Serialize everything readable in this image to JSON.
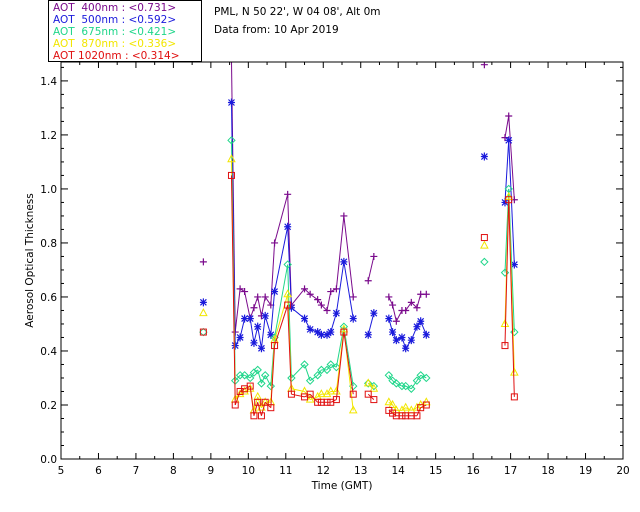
{
  "header": {
    "site": "PML, N 50 22', W 04 08', Alt 0m",
    "date": "Data from: 10 Apr 2019"
  },
  "legend": [
    {
      "name": "AOT  400nm : <0.731>",
      "color": "#7a0a8c"
    },
    {
      "name": "AOT  500nm : <0.592>",
      "color": "#1a1adc"
    },
    {
      "name": "AOT  675nm : <0.421>",
      "color": "#1fd68a"
    },
    {
      "name": "AOT  870nm : <0.336>",
      "color": "#f2e600"
    },
    {
      "name": "AOT 1020nm : <0.314>",
      "color": "#e01010"
    }
  ],
  "chart_data": {
    "type": "line",
    "xlabel": "Time (GMT)",
    "ylabel": "Aerosol Optical Thickness",
    "xlim": [
      5,
      20
    ],
    "ylim": [
      0,
      1.47
    ],
    "xticks": [
      5,
      6,
      7,
      8,
      9,
      10,
      11,
      12,
      13,
      14,
      15,
      16,
      17,
      18,
      19,
      20
    ],
    "yticks": [
      "0.0",
      "0.2",
      "0.4",
      "0.6",
      "0.8",
      "1.0",
      "1.2",
      "1.4"
    ],
    "series": [
      {
        "name": "AOT  400nm",
        "color": "#7a0a8c",
        "marker": "plus",
        "points": [
          [
            8.8,
            0.73
          ],
          [
            9.55,
            1.48
          ],
          [
            9.65,
            0.47
          ],
          [
            9.78,
            0.63
          ],
          [
            9.9,
            0.62
          ],
          [
            10.05,
            0.52
          ],
          [
            10.15,
            0.56
          ],
          [
            10.25,
            0.6
          ],
          [
            10.35,
            0.53
          ],
          [
            10.45,
            0.6
          ],
          [
            10.6,
            0.57
          ],
          [
            10.7,
            0.8
          ],
          [
            11.05,
            0.98
          ],
          [
            11.15,
            0.57
          ],
          [
            11.5,
            0.63
          ],
          [
            11.65,
            0.61
          ],
          [
            11.85,
            0.59
          ],
          [
            11.95,
            0.57
          ],
          [
            12.1,
            0.55
          ],
          [
            12.2,
            0.62
          ],
          [
            12.35,
            0.63
          ],
          [
            12.55,
            0.9
          ],
          [
            12.8,
            0.6
          ],
          [
            13.2,
            0.66
          ],
          [
            13.35,
            0.75
          ],
          [
            13.75,
            0.6
          ],
          [
            13.85,
            0.57
          ],
          [
            13.95,
            0.51
          ],
          [
            14.1,
            0.55
          ],
          [
            14.2,
            0.55
          ],
          [
            14.35,
            0.58
          ],
          [
            14.5,
            0.56
          ],
          [
            14.6,
            0.61
          ],
          [
            14.75,
            0.61
          ],
          [
            16.3,
            1.46
          ],
          [
            16.85,
            1.19
          ],
          [
            16.95,
            1.27
          ],
          [
            17.1,
            0.96
          ]
        ],
        "breaks": [
          1,
          13,
          23,
          25,
          34,
          35
        ]
      },
      {
        "name": "AOT  500nm",
        "color": "#1a1adc",
        "marker": "star",
        "points": [
          [
            8.8,
            0.58
          ],
          [
            9.55,
            1.32
          ],
          [
            9.65,
            0.42
          ],
          [
            9.78,
            0.45
          ],
          [
            9.9,
            0.52
          ],
          [
            10.05,
            0.52
          ],
          [
            10.15,
            0.43
          ],
          [
            10.25,
            0.49
          ],
          [
            10.35,
            0.41
          ],
          [
            10.45,
            0.53
          ],
          [
            10.6,
            0.46
          ],
          [
            10.7,
            0.62
          ],
          [
            11.05,
            0.86
          ],
          [
            11.15,
            0.56
          ],
          [
            11.5,
            0.52
          ],
          [
            11.65,
            0.48
          ],
          [
            11.85,
            0.47
          ],
          [
            11.95,
            0.46
          ],
          [
            12.1,
            0.46
          ],
          [
            12.2,
            0.47
          ],
          [
            12.35,
            0.54
          ],
          [
            12.55,
            0.73
          ],
          [
            12.8,
            0.52
          ],
          [
            13.2,
            0.46
          ],
          [
            13.35,
            0.54
          ],
          [
            13.75,
            0.52
          ],
          [
            13.85,
            0.47
          ],
          [
            13.95,
            0.44
          ],
          [
            14.1,
            0.45
          ],
          [
            14.2,
            0.41
          ],
          [
            14.35,
            0.44
          ],
          [
            14.5,
            0.49
          ],
          [
            14.6,
            0.51
          ],
          [
            14.75,
            0.46
          ],
          [
            16.3,
            1.12
          ],
          [
            16.85,
            0.95
          ],
          [
            16.95,
            1.18
          ],
          [
            17.1,
            0.72
          ]
        ],
        "breaks": [
          1,
          13,
          23,
          25,
          34,
          35
        ]
      },
      {
        "name": "AOT  675nm",
        "color": "#1fd68a",
        "marker": "diamond",
        "points": [
          [
            8.8,
            0.47
          ],
          [
            9.55,
            1.18
          ],
          [
            9.65,
            0.29
          ],
          [
            9.78,
            0.31
          ],
          [
            9.9,
            0.31
          ],
          [
            10.05,
            0.3
          ],
          [
            10.15,
            0.32
          ],
          [
            10.25,
            0.33
          ],
          [
            10.35,
            0.28
          ],
          [
            10.45,
            0.31
          ],
          [
            10.6,
            0.27
          ],
          [
            10.7,
            0.45
          ],
          [
            11.05,
            0.72
          ],
          [
            11.15,
            0.3
          ],
          [
            11.5,
            0.35
          ],
          [
            11.65,
            0.29
          ],
          [
            11.85,
            0.31
          ],
          [
            11.95,
            0.33
          ],
          [
            12.1,
            0.33
          ],
          [
            12.2,
            0.35
          ],
          [
            12.35,
            0.34
          ],
          [
            12.55,
            0.49
          ],
          [
            12.8,
            0.27
          ],
          [
            13.2,
            0.28
          ],
          [
            13.35,
            0.27
          ],
          [
            13.75,
            0.31
          ],
          [
            13.85,
            0.29
          ],
          [
            13.95,
            0.28
          ],
          [
            14.1,
            0.27
          ],
          [
            14.2,
            0.27
          ],
          [
            14.35,
            0.26
          ],
          [
            14.5,
            0.29
          ],
          [
            14.6,
            0.31
          ],
          [
            14.75,
            0.3
          ],
          [
            16.3,
            0.73
          ],
          [
            16.85,
            0.69
          ],
          [
            16.95,
            1.0
          ],
          [
            17.1,
            0.47
          ]
        ],
        "breaks": [
          1,
          13,
          23,
          25,
          34,
          35
        ]
      },
      {
        "name": "AOT  870nm",
        "color": "#f2e600",
        "marker": "triangle",
        "points": [
          [
            8.8,
            0.54
          ],
          [
            9.55,
            1.11
          ],
          [
            9.65,
            0.22
          ],
          [
            9.78,
            0.24
          ],
          [
            9.9,
            0.25
          ],
          [
            10.05,
            0.26
          ],
          [
            10.15,
            0.18
          ],
          [
            10.25,
            0.23
          ],
          [
            10.35,
            0.19
          ],
          [
            10.45,
            0.21
          ],
          [
            10.6,
            0.21
          ],
          [
            10.7,
            0.44
          ],
          [
            11.05,
            0.61
          ],
          [
            11.15,
            0.26
          ],
          [
            11.5,
            0.25
          ],
          [
            11.65,
            0.22
          ],
          [
            11.85,
            0.23
          ],
          [
            11.95,
            0.24
          ],
          [
            12.1,
            0.24
          ],
          [
            12.2,
            0.25
          ],
          [
            12.35,
            0.25
          ],
          [
            12.55,
            0.48
          ],
          [
            12.8,
            0.18
          ],
          [
            13.2,
            0.28
          ],
          [
            13.35,
            0.26
          ],
          [
            13.75,
            0.21
          ],
          [
            13.85,
            0.2
          ],
          [
            13.95,
            0.18
          ],
          [
            14.1,
            0.18
          ],
          [
            14.2,
            0.19
          ],
          [
            14.35,
            0.18
          ],
          [
            14.5,
            0.19
          ],
          [
            14.6,
            0.2
          ],
          [
            14.75,
            0.21
          ],
          [
            16.3,
            0.79
          ],
          [
            16.85,
            0.5
          ],
          [
            16.95,
            0.97
          ],
          [
            17.1,
            0.32
          ]
        ],
        "breaks": [
          1,
          13,
          23,
          25,
          34,
          35
        ]
      },
      {
        "name": "AOT 1020nm",
        "color": "#e01010",
        "marker": "square",
        "points": [
          [
            8.8,
            0.47
          ],
          [
            9.55,
            1.05
          ],
          [
            9.65,
            0.2
          ],
          [
            9.78,
            0.25
          ],
          [
            9.9,
            0.26
          ],
          [
            10.05,
            0.27
          ],
          [
            10.15,
            0.16
          ],
          [
            10.25,
            0.21
          ],
          [
            10.35,
            0.16
          ],
          [
            10.45,
            0.21
          ],
          [
            10.6,
            0.19
          ],
          [
            10.7,
            0.42
          ],
          [
            11.05,
            0.57
          ],
          [
            11.15,
            0.24
          ],
          [
            11.5,
            0.23
          ],
          [
            11.65,
            0.24
          ],
          [
            11.85,
            0.21
          ],
          [
            11.95,
            0.21
          ],
          [
            12.1,
            0.21
          ],
          [
            12.2,
            0.21
          ],
          [
            12.35,
            0.22
          ],
          [
            12.55,
            0.47
          ],
          [
            12.8,
            0.24
          ],
          [
            13.2,
            0.24
          ],
          [
            13.35,
            0.22
          ],
          [
            13.75,
            0.18
          ],
          [
            13.85,
            0.17
          ],
          [
            13.95,
            0.16
          ],
          [
            14.1,
            0.16
          ],
          [
            14.2,
            0.16
          ],
          [
            14.35,
            0.16
          ],
          [
            14.5,
            0.16
          ],
          [
            14.6,
            0.19
          ],
          [
            14.75,
            0.2
          ],
          [
            16.3,
            0.82
          ],
          [
            16.85,
            0.42
          ],
          [
            16.95,
            0.96
          ],
          [
            17.1,
            0.23
          ]
        ],
        "breaks": [
          1,
          13,
          23,
          25,
          34,
          35
        ]
      }
    ]
  }
}
